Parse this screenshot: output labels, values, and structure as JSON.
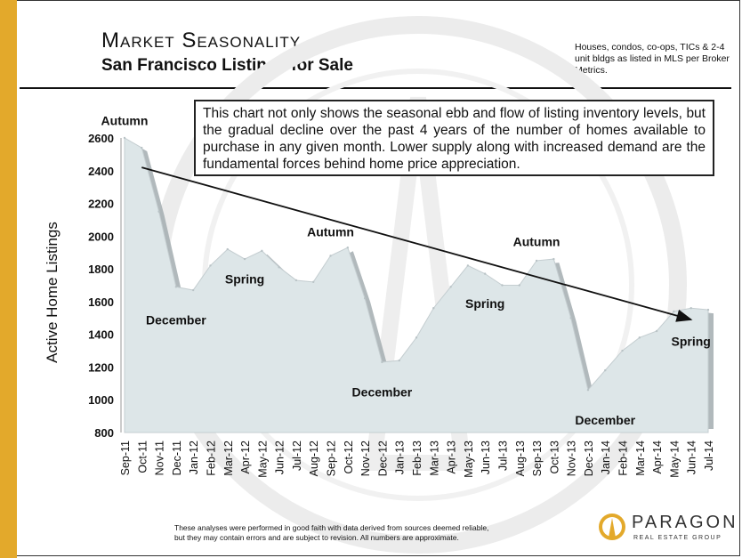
{
  "header": {
    "title": "Market Seasonality",
    "subtitle": "San Francisco Listings for Sale",
    "note": "Houses, condos, co-ops, TICs & 2-4 unit bldgs as listed in MLS per Broker Metrics."
  },
  "callout": "This chart not only shows the seasonal ebb and flow of listing inventory levels, but the gradual decline over the past 4 years of the number of homes available to purchase in any given month. Lower supply along with increased demand are the fundamental forces behind home price appreciation.",
  "footer": {
    "line1": "These analyses were performed in good faith with data derived from sources deemed reliable,",
    "line2": "but they may contain errors and are subject to revision. All numbers are approximate."
  },
  "logo": {
    "name": "PARAGON",
    "tagline": "REAL ESTATE GROUP"
  },
  "colors": {
    "accent": "#e3a92b",
    "area_fill": "#dde6e8",
    "area_edge": "#a3adb0"
  },
  "chart_data": {
    "type": "area",
    "ylabel": "Active Home Listings",
    "ylim": [
      800,
      2600
    ],
    "yticks": [
      800,
      1000,
      1200,
      1400,
      1600,
      1800,
      2000,
      2200,
      2400,
      2600
    ],
    "grid": false,
    "categories": [
      "Sep-11",
      "Oct-11",
      "Nov-11",
      "Dec-11",
      "Jan-12",
      "Feb-12",
      "Mar-12",
      "Apr-12",
      "May-12",
      "Jun-12",
      "Jul-12",
      "Aug-12",
      "Sep-12",
      "Oct-12",
      "Nov-12",
      "Dec-12",
      "Jan-13",
      "Feb-13",
      "Mar-13",
      "Apr-13",
      "May-13",
      "Jun-13",
      "Jul-13",
      "Aug-13",
      "Sep-13",
      "Oct-13",
      "Nov-13",
      "Dec-13",
      "Jan-14",
      "Feb-14",
      "Mar-14",
      "Apr-14",
      "May-14",
      "Jun-14",
      "Jul-14"
    ],
    "series": [
      {
        "values": [
          2600,
          2540,
          2150,
          1690,
          1670,
          1820,
          1920,
          1860,
          1910,
          1810,
          1730,
          1720,
          1880,
          1930,
          1620,
          1230,
          1240,
          1380,
          1560,
          1690,
          1820,
          1770,
          1700,
          1700,
          1850,
          1860,
          1500,
          1060,
          1180,
          1300,
          1380,
          1420,
          1540,
          1560,
          1550
        ]
      }
    ],
    "trend_arrow": {
      "from": {
        "x": "Oct-11",
        "y": 2420
      },
      "to": {
        "x": "Jun-14",
        "y": 1490
      }
    },
    "annotations": [
      {
        "text": "Autumn",
        "x": "Sep-11",
        "y": 2680
      },
      {
        "text": "December",
        "x": "Dec-11",
        "y": 1460
      },
      {
        "text": "Spring",
        "x": "Apr-12",
        "y": 1710
      },
      {
        "text": "Autumn",
        "x": "Sep-12",
        "y": 2000
      },
      {
        "text": "December",
        "x": "Dec-12",
        "y": 1020
      },
      {
        "text": "Spring",
        "x": "Jun-13",
        "y": 1560
      },
      {
        "text": "Autumn",
        "x": "Sep-13",
        "y": 1940
      },
      {
        "text": "December",
        "x": "Jan-14",
        "y": 850
      },
      {
        "text": "Spring",
        "x": "Jun-14",
        "y": 1330
      }
    ]
  }
}
